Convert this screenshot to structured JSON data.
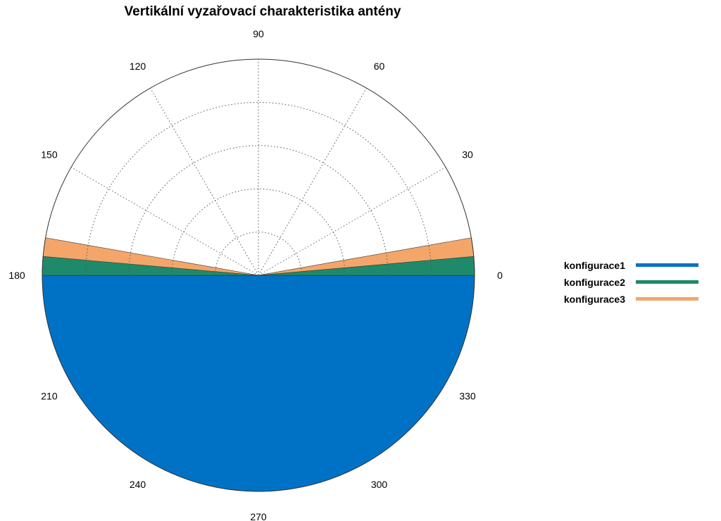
{
  "chart_data": {
    "type": "polar-area",
    "title": "Vertikální vyzařovací charakteristika antény",
    "theta_unit": "degrees",
    "theta_ticks": [
      "0",
      "30",
      "60",
      "90",
      "120",
      "150",
      "180",
      "210",
      "240",
      "270",
      "300",
      "330"
    ],
    "r_rings": 5,
    "grid": true,
    "legend_position": "right",
    "series": [
      {
        "name": "konfigurace1",
        "color": "#0072c6",
        "theta_range": [
          180,
          360
        ],
        "r": 1.0
      },
      {
        "name": "konfigurace2",
        "color": "#1f8a6a",
        "theta_range": [
          0,
          5
        ],
        "r": 1.0,
        "mirror": true
      },
      {
        "name": "konfigurace3",
        "color": "#f4a66a",
        "theta_range": [
          0,
          10
        ],
        "r": 1.0,
        "mirror": true
      }
    ]
  }
}
